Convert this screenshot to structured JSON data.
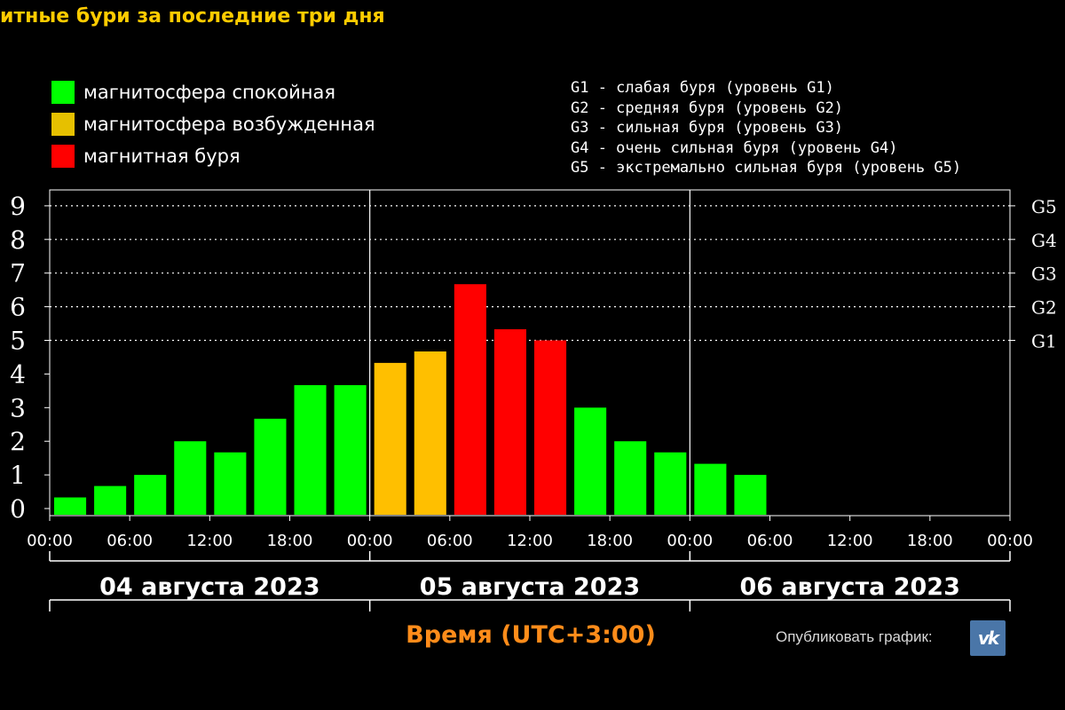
{
  "header": {
    "title": "итные бури за последние три дня"
  },
  "legend": {
    "items": [
      {
        "label": "магнитосфера спокойная",
        "color": "#00ff00"
      },
      {
        "label": "магнитосфера возбужденная",
        "color": "#e6c000"
      },
      {
        "label": "магнитная буря",
        "color": "#ff0000"
      }
    ],
    "levels": [
      "G1 - слабая буря (уровень G1)",
      "G2 - средняя буря (уровень G2)",
      "G3 - сильная буря (уровень G3)",
      "G4 - очень сильная буря (уровень G4)",
      "G5 - экстремально сильная буря (уровень G5)"
    ]
  },
  "footer": {
    "axis_title": "Время (UTC+3:00)",
    "publish_label": "Опубликовать график:",
    "vk_icon": "vk-icon",
    "vk_label": "vk"
  },
  "chart_data": {
    "type": "bar",
    "title": "",
    "ylim": [
      0,
      9.5
    ],
    "y_ticks": [
      "0",
      "1",
      "2",
      "3",
      "4",
      "5",
      "6",
      "7",
      "8",
      "9"
    ],
    "right_ticks": [
      {
        "label": "G1",
        "value": 5
      },
      {
        "label": "G2",
        "value": 6
      },
      {
        "label": "G3",
        "value": 7
      },
      {
        "label": "G4",
        "value": 8
      },
      {
        "label": "G5",
        "value": 9
      }
    ],
    "grid": "dotted horizontal lines at 5-9",
    "x_tick_labels": [
      "00:00",
      "06:00",
      "12:00",
      "18:00",
      "00:00",
      "06:00",
      "12:00",
      "18:00",
      "00:00",
      "06:00",
      "12:00",
      "18:00",
      "00:00"
    ],
    "days": [
      "04 августа 2023",
      "05 августа 2023",
      "06 августа 2023"
    ],
    "bar_interval_hours": 3,
    "colors": {
      "quiet": "#00ff00",
      "excited": "#ffbf00",
      "storm": "#ff0000"
    },
    "values": [
      0.33,
      0.67,
      1.0,
      2.0,
      1.67,
      2.67,
      3.67,
      3.67,
      4.33,
      4.67,
      6.67,
      5.33,
      5.0,
      3.0,
      2.0,
      1.67,
      1.33,
      1.0
    ]
  }
}
